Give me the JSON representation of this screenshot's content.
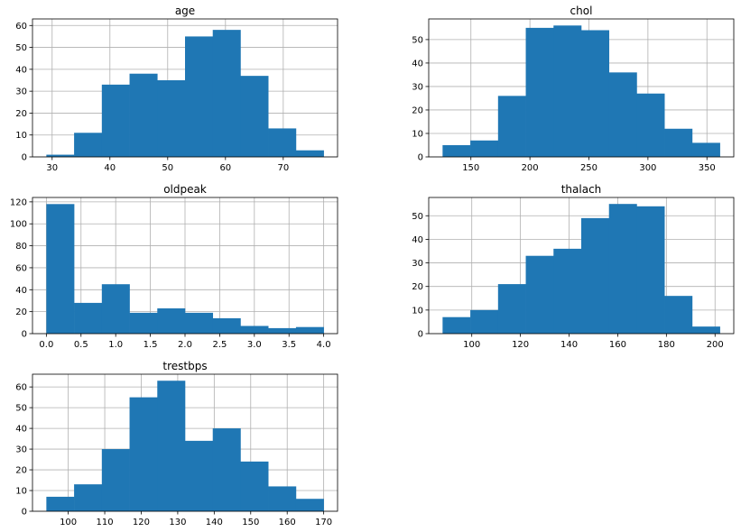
{
  "chart_data": [
    {
      "type": "bar",
      "title": "age",
      "bin_edges": [
        29,
        33.8,
        38.6,
        43.4,
        48.2,
        53,
        57.8,
        62.6,
        67.4,
        72.2,
        77
      ],
      "values": [
        1,
        11,
        33,
        38,
        35,
        55,
        58,
        37,
        13,
        3
      ],
      "xlim": [
        26.6,
        79.4
      ],
      "ylim": [
        0,
        63
      ],
      "xticks": [
        30,
        40,
        50,
        60,
        70
      ],
      "yticks": [
        0,
        10,
        20,
        30,
        40,
        50,
        60
      ],
      "xtick_labels": [
        "30",
        "40",
        "50",
        "60",
        "70"
      ],
      "ytick_labels": [
        "0",
        "10",
        "20",
        "30",
        "40",
        "50",
        "60"
      ],
      "grid": true,
      "color": "#1f77b4"
    },
    {
      "type": "bar",
      "title": "chol",
      "bin_edges": [
        126,
        149.5,
        173,
        196.5,
        220,
        243.5,
        267,
        290.5,
        314,
        337.5,
        361
      ],
      "values": [
        5,
        7,
        26,
        55,
        56,
        54,
        36,
        27,
        12,
        6
      ],
      "xlim": [
        114.25,
        372.75
      ],
      "ylim": [
        0,
        58.8
      ],
      "xticks": [
        150,
        200,
        250,
        300,
        350
      ],
      "yticks": [
        0,
        10,
        20,
        30,
        40,
        50
      ],
      "xtick_labels": [
        "150",
        "200",
        "250",
        "300",
        "350"
      ],
      "ytick_labels": [
        "0",
        "10",
        "20",
        "30",
        "40",
        "50"
      ],
      "grid": true,
      "color": "#1f77b4"
    },
    {
      "type": "bar",
      "title": "oldpeak",
      "bin_edges": [
        0,
        0.4,
        0.8,
        1.2,
        1.6,
        2.0,
        2.4,
        2.8,
        3.2,
        3.6,
        4.0
      ],
      "values": [
        118,
        28,
        45,
        19,
        23,
        19,
        14,
        7,
        5,
        6
      ],
      "xlim": [
        -0.2,
        4.2
      ],
      "ylim": [
        0,
        124
      ],
      "xticks": [
        0,
        0.5,
        1.0,
        1.5,
        2.0,
        2.5,
        3.0,
        3.5,
        4.0
      ],
      "yticks": [
        0,
        20,
        40,
        60,
        80,
        100,
        120
      ],
      "xtick_labels": [
        "0.0",
        "0.5",
        "1.0",
        "1.5",
        "2.0",
        "2.5",
        "3.0",
        "3.5",
        "4.0"
      ],
      "ytick_labels": [
        "0",
        "20",
        "40",
        "60",
        "80",
        "100",
        "120"
      ],
      "grid": true,
      "color": "#1f77b4"
    },
    {
      "type": "bar",
      "title": "thalach",
      "bin_edges": [
        88,
        99.4,
        110.8,
        122.2,
        133.6,
        145,
        156.4,
        167.8,
        179.2,
        190.6,
        202
      ],
      "values": [
        7,
        10,
        21,
        33,
        36,
        49,
        55,
        54,
        16,
        3
      ],
      "xlim": [
        82.3,
        207.7
      ],
      "ylim": [
        0,
        57.75
      ],
      "xticks": [
        100,
        120,
        140,
        160,
        180,
        200
      ],
      "yticks": [
        0,
        10,
        20,
        30,
        40,
        50
      ],
      "xtick_labels": [
        "100",
        "120",
        "140",
        "160",
        "180",
        "200"
      ],
      "ytick_labels": [
        "0",
        "10",
        "20",
        "30",
        "40",
        "50"
      ],
      "grid": true,
      "color": "#1f77b4"
    },
    {
      "type": "bar",
      "title": "trestbps",
      "bin_edges": [
        94,
        101.6,
        109.2,
        116.8,
        124.4,
        132,
        139.6,
        147.2,
        154.8,
        162.4,
        170
      ],
      "values": [
        7,
        13,
        30,
        55,
        63,
        34,
        40,
        24,
        12,
        6
      ],
      "xlim": [
        90.2,
        173.8
      ],
      "ylim": [
        0,
        66.15
      ],
      "xticks": [
        100,
        110,
        120,
        130,
        140,
        150,
        160,
        170
      ],
      "yticks": [
        0,
        10,
        20,
        30,
        40,
        50,
        60
      ],
      "xtick_labels": [
        "100",
        "110",
        "120",
        "130",
        "140",
        "150",
        "160",
        "170"
      ],
      "ytick_labels": [
        "0",
        "10",
        "20",
        "30",
        "40",
        "50",
        "60"
      ],
      "grid": true,
      "color": "#1f77b4"
    }
  ]
}
